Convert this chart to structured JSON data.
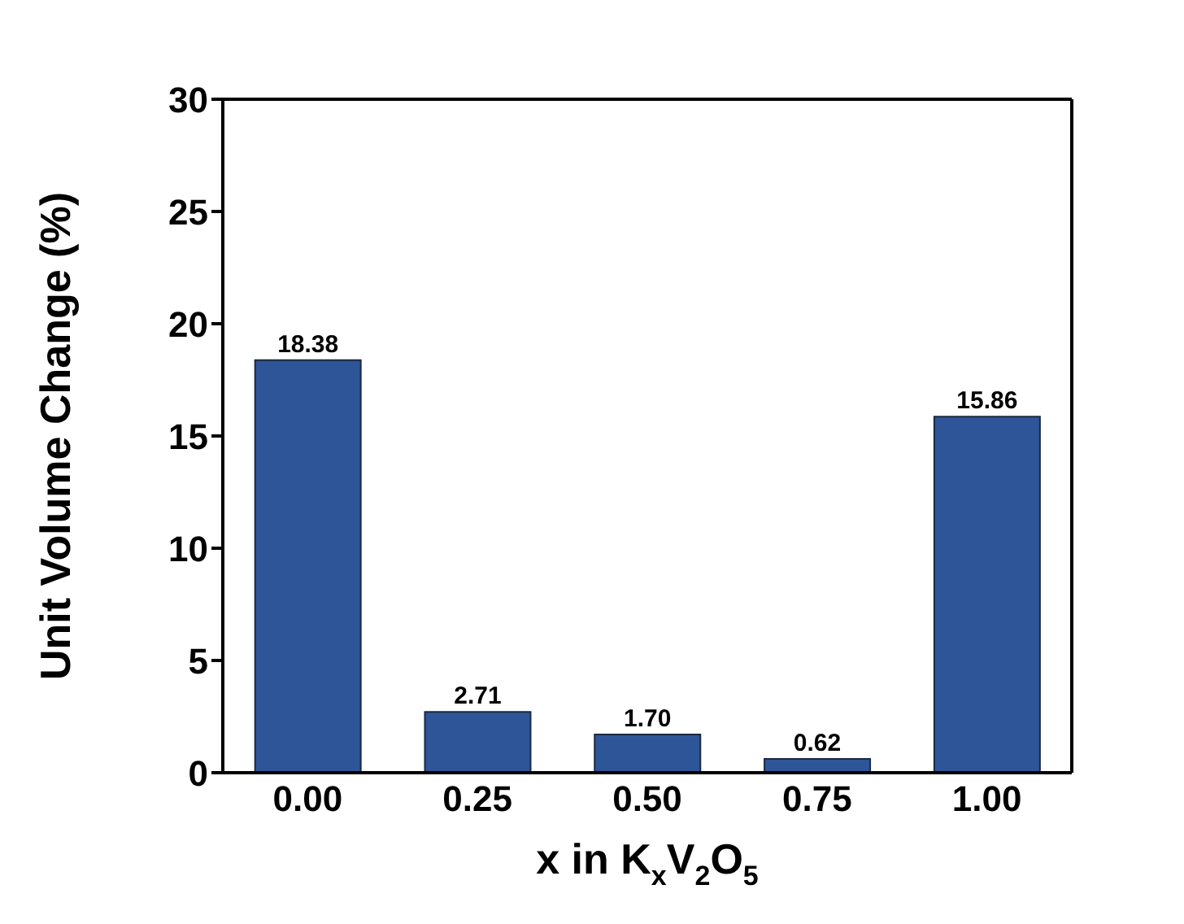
{
  "chart_data": {
    "type": "bar",
    "xlabel": "x in K$_{x}$V$_{2}$O$_{5}$",
    "ylabel": "Unit Volume Change (%)",
    "categories": [
      "0.00",
      "0.25",
      "0.50",
      "0.75",
      "1.00"
    ],
    "values": [
      18.38,
      2.71,
      1.7,
      0.62,
      15.86
    ],
    "value_labels": [
      "18.38",
      "2.71",
      "1.70",
      "0.62",
      "15.86"
    ],
    "color": "#2e5597",
    "ylim": [
      0,
      30
    ],
    "yticks": [
      0,
      5,
      10,
      15,
      20,
      25,
      30
    ],
    "grid": false,
    "legend": false
  }
}
